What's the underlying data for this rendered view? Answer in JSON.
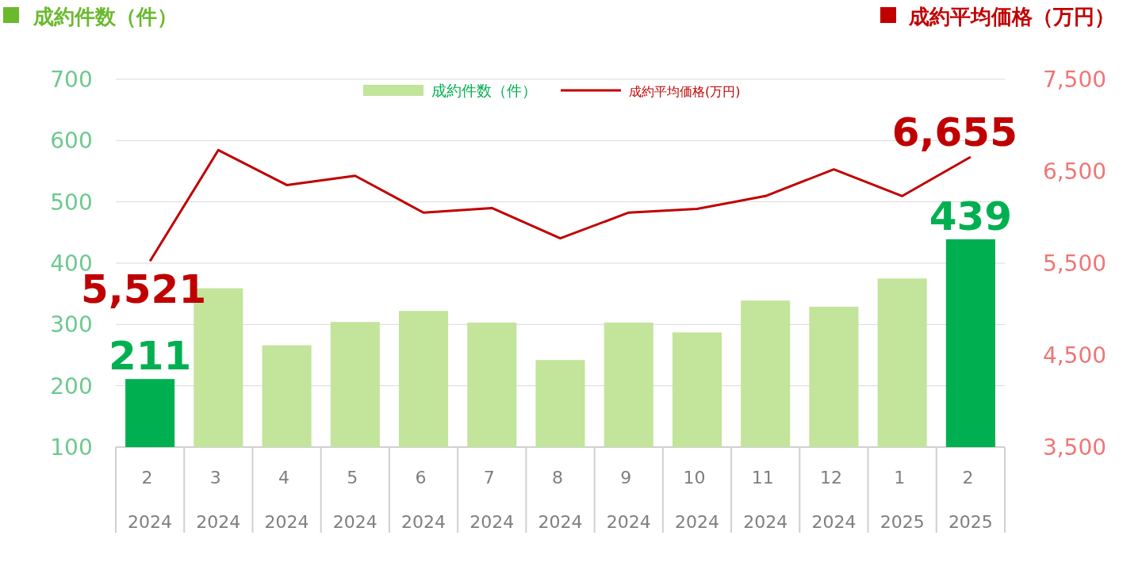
{
  "chart_data": {
    "type": "bar",
    "ylabel": "成約件数（件）",
    "y2label": "成約平均価格（万円）",
    "categories": [
      "2 2024",
      "3 2024",
      "4 2024",
      "5 2024",
      "6 2024",
      "7 2024",
      "8 2024",
      "9 2024",
      "10 2024",
      "11 2024",
      "12 2024",
      "1 2025",
      "2 2025"
    ],
    "series": [
      {
        "name": "成約件数（件）",
        "colors": [
          "#00b050",
          "#c3e49b",
          "#c3e49b",
          "#c3e49b",
          "#c3e49b",
          "#c3e49b",
          "#c3e49b",
          "#c3e49b",
          "#c3e49b",
          "#c3e49b",
          "#c3e49b",
          "#c3e49b",
          "#00b050"
        ],
        "values": [
          211,
          359,
          266,
          304,
          322,
          303,
          242,
          303,
          287,
          339,
          329,
          375,
          439
        ],
        "value_labels": [
          "211",
          null,
          null,
          null,
          null,
          null,
          null,
          null,
          null,
          null,
          null,
          null,
          "439"
        ]
      },
      {
        "name": "成約平均価格(万円)",
        "type": "line",
        "axis": "y2",
        "color": "#c00000",
        "values": [
          5521,
          6730,
          6350,
          6450,
          6050,
          6100,
          5770,
          6050,
          6090,
          6230,
          6520,
          6230,
          6655
        ],
        "value_labels": [
          "5,521",
          null,
          null,
          null,
          null,
          null,
          null,
          null,
          null,
          null,
          null,
          null,
          "6,655"
        ]
      }
    ],
    "ylim": [
      100,
      700
    ],
    "yticks": [
      100,
      200,
      300,
      400,
      500,
      600,
      700
    ],
    "y2lim": [
      3500,
      7500
    ],
    "y2ticks": [
      {
        "value": 3500,
        "label": "3,500"
      },
      {
        "value": 4500,
        "label": "4,500"
      },
      {
        "value": 5500,
        "label": "5,500"
      },
      {
        "value": 6500,
        "label": "6,500"
      },
      {
        "value": 7500,
        "label": "7,500"
      }
    ],
    "grid": "y",
    "legend": "top"
  }
}
